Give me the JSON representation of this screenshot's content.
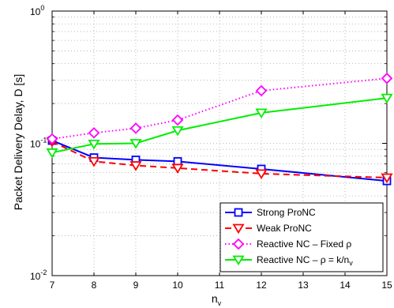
{
  "chart_data": {
    "type": "line",
    "title": "",
    "xlabel_main": "n",
    "xlabel_sub": "v",
    "ylabel": "Packet Delivery Delay, D [s]",
    "x": [
      7,
      8,
      9,
      10,
      12,
      15
    ],
    "xlim": [
      7,
      15
    ],
    "xticks": [
      "7",
      "8",
      "9",
      "10",
      "11",
      "12",
      "13",
      "14",
      "15"
    ],
    "yscale": "log",
    "ylim": [
      0.01,
      1
    ],
    "yticks": [
      {
        "base": "10",
        "exp": "-2"
      },
      {
        "base": "10",
        "exp": "-1"
      },
      {
        "base": "10",
        "exp": "0"
      }
    ],
    "grid": true,
    "legend_position": "bottom-right",
    "series": [
      {
        "name": "Strong ProNC",
        "color": "#0000ff",
        "line": "solid",
        "marker": "square",
        "values": [
          0.105,
          0.078,
          0.075,
          0.073,
          0.064,
          0.052
        ]
      },
      {
        "name": "Weak ProNC",
        "color": "#ff0000",
        "line": "dashed",
        "marker": "triangle-down",
        "values": [
          0.103,
          0.073,
          0.068,
          0.065,
          0.059,
          0.055
        ]
      },
      {
        "name": "Reactive NC – Fixed ρ",
        "color": "#ff00ff",
        "line": "dotted",
        "marker": "diamond",
        "values": [
          0.108,
          0.12,
          0.13,
          0.15,
          0.25,
          0.31
        ]
      },
      {
        "name": "Reactive NC – ρ = k/n",
        "name_sub": "v",
        "color": "#00ee00",
        "line": "solid",
        "marker": "triangle-down",
        "values": [
          0.085,
          0.099,
          0.1,
          0.125,
          0.17,
          0.22
        ]
      }
    ]
  }
}
